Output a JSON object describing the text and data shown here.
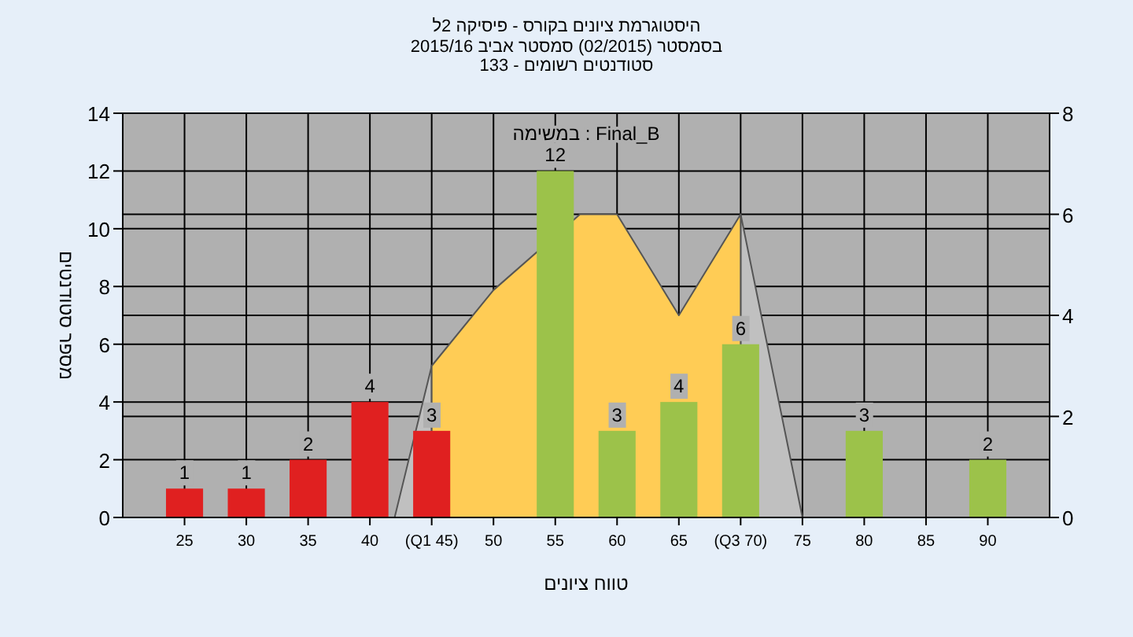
{
  "chart_data": {
    "type": "bar",
    "title": "היסטוגרמת ציונים בקורס - פיסיקה 2ל",
    "subtitle": "בסמסטר (02/2015) סמסטר אביב 2015/16\nסטודנטים רשומים - 133",
    "xlabel": "טווח ציונים",
    "ylabel": "מספר סטודנטים",
    "annotations": [
      "במשימה : Final_B"
    ],
    "x": [
      25,
      30,
      35,
      40,
      45,
      55,
      60,
      65,
      70,
      80,
      90
    ],
    "series": [
      {
        "type": "area",
        "axis": "y2",
        "color": "#c0c0c0",
        "x": [
          42,
          45
        ],
        "values": [
          0,
          3
        ]
      },
      {
        "type": "area",
        "axis": "y2",
        "color": "#c0c0c0",
        "x": [
          70,
          75
        ],
        "values": [
          6,
          0
        ]
      },
      {
        "type": "area",
        "axis": "y2",
        "color": "#ffcc55",
        "x": [
          45,
          50,
          57,
          60,
          65,
          70
        ],
        "values": [
          3,
          4.5,
          6,
          6,
          4,
          6
        ]
      },
      {
        "values": [
          1,
          1,
          2,
          4,
          3,
          12,
          3,
          4,
          6,
          3,
          2
        ],
        "value_labels": [
          "1",
          "1",
          "2",
          "4",
          "3",
          "12",
          "3",
          "4",
          "6",
          "3",
          "2"
        ],
        "colors": [
          "#e02020",
          "#e02020",
          "#e02020",
          "#e02020",
          "#e02020",
          "#9cc24a",
          "#9cc24a",
          "#9cc24a",
          "#9cc24a",
          "#9cc24a",
          "#9cc24a"
        ]
      }
    ],
    "xlim": [
      20,
      95
    ],
    "xticks": [
      25,
      30,
      35,
      40,
      {
        "value": 45,
        "label": "(Q1 45)"
      },
      50,
      55,
      60,
      65,
      {
        "value": 70,
        "label": "(Q3 70)"
      },
      75,
      80,
      85,
      90
    ],
    "ylim": [
      0,
      14
    ],
    "yticks": [
      0,
      2,
      4,
      6,
      8,
      10,
      12,
      14
    ],
    "y2lim": [
      0,
      8
    ],
    "y2ticks": [
      0,
      2,
      4,
      6,
      8
    ],
    "grid": true
  }
}
